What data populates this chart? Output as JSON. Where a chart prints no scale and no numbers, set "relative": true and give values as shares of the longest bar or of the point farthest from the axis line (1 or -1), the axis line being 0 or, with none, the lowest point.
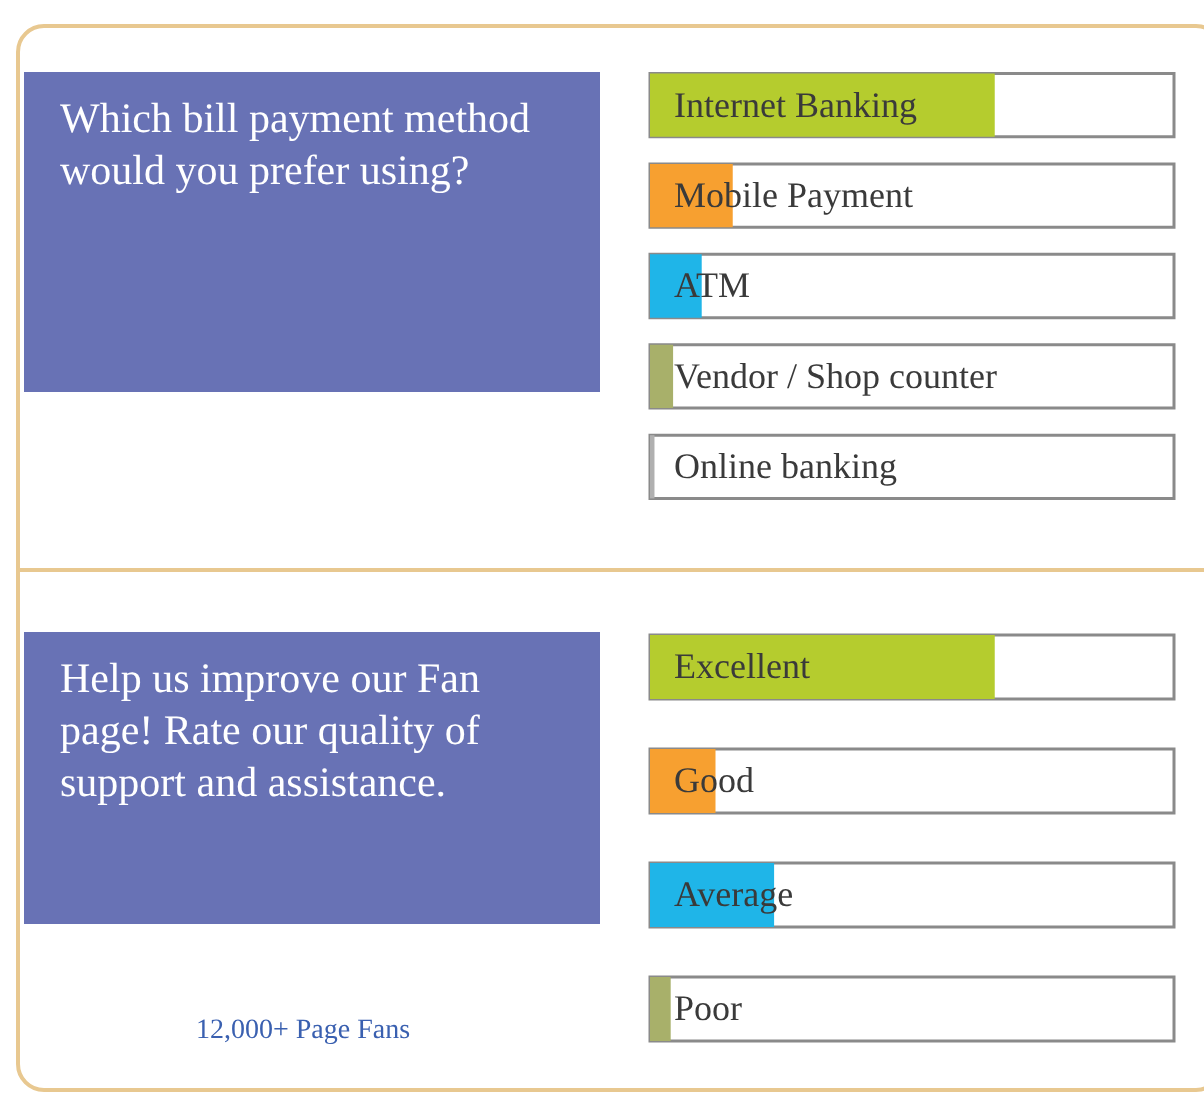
{
  "chart_data": [
    {
      "type": "bar",
      "title": "Which bill payment method would you prefer using?",
      "orientation": "horizontal",
      "relative": true,
      "categories": [
        "Internet Banking",
        "Mobile Payment",
        "ATM",
        "Vendor / Shop counter",
        "Online banking"
      ],
      "values": [
        1,
        0.24,
        0.15,
        0.067,
        0.013
      ],
      "colors": [
        "#b5cc2e",
        "#f7a030",
        "#1fb5e8",
        "#a8b06a",
        "#b0b0b0"
      ]
    },
    {
      "type": "bar",
      "title": "Help us improve our Fan page! Rate our quality of support and assistance.",
      "orientation": "horizontal",
      "relative": true,
      "categories": [
        "Excellent",
        "Good",
        "Average",
        "Poor"
      ],
      "values": [
        1,
        0.19,
        0.36,
        0.06
      ],
      "colors": [
        "#b5cc2e",
        "#f7a030",
        "#1fb5e8",
        "#a8b06a"
      ],
      "annotations": [
        "12,000+ Page Fans"
      ]
    }
  ]
}
